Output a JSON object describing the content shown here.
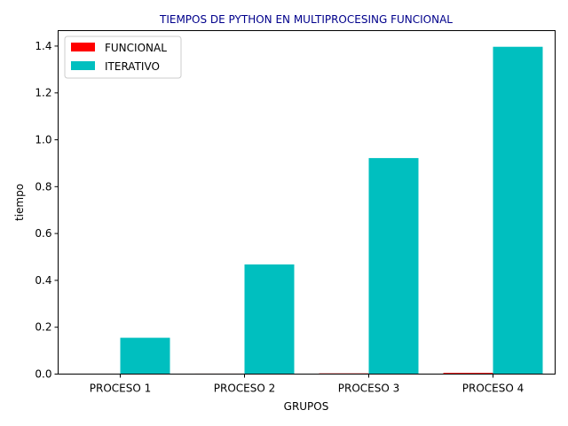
{
  "chart_data": {
    "type": "bar",
    "title": "TIEMPOS DE PYTHON EN MULTIPROCESING FUNCIONAL",
    "xlabel": "GRUPOS",
    "ylabel": "tiempo",
    "categories": [
      "PROCESO 1",
      "PROCESO 2",
      "PROCESO 3",
      "PROCESO 4"
    ],
    "series": [
      {
        "name": "FUNCIONAL",
        "color": "#ff0000",
        "values": [
          0.0005,
          0.002,
          0.003,
          0.005
        ]
      },
      {
        "name": "ITERATIVO",
        "color": "#00bfbf",
        "values": [
          0.155,
          0.468,
          0.922,
          1.397
        ]
      }
    ],
    "ylim": [
      0,
      1.466
    ],
    "yticks": [
      "0.0",
      "0.2",
      "0.4",
      "0.6",
      "0.8",
      "1.0",
      "1.2",
      "1.4"
    ],
    "ytick_values": [
      0,
      0.2,
      0.4,
      0.6,
      0.8,
      1.0,
      1.2,
      1.4
    ],
    "grid": false,
    "legend": "top-left",
    "title_color": "#00008b"
  }
}
